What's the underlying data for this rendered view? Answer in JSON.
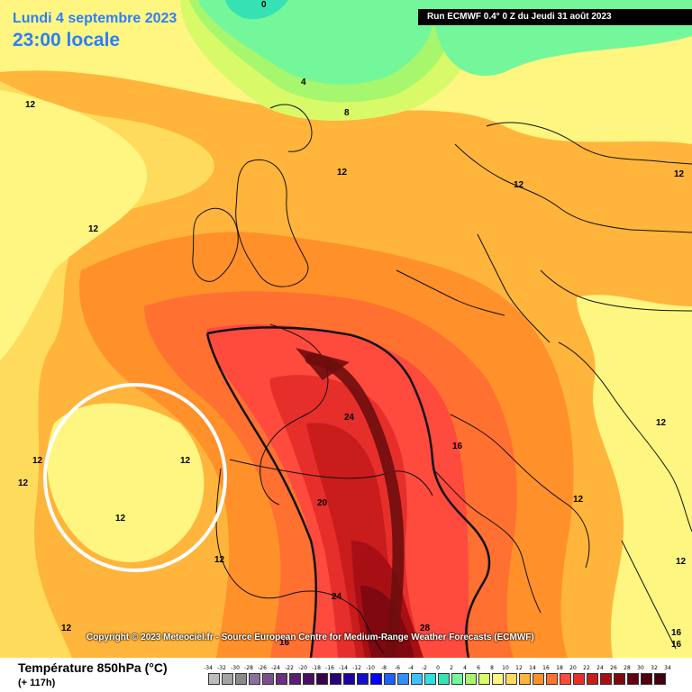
{
  "header": {
    "date": "Lundi 4 septembre 2023",
    "time": "23:00 locale",
    "run_info": "Run ECMWF 0.4° 0 Z du Jeudi 31 août 2023"
  },
  "map": {
    "copyright": "Copyright © 2023 Meteociel.fr - Source European Centre for Medium-Range Weather Forecasts (ECMWF)",
    "isotherm_labels": [
      "0",
      "4",
      "8",
      "12",
      "12",
      "12",
      "12",
      "12",
      "12",
      "12",
      "12",
      "12",
      "12",
      "12",
      "12",
      "12",
      "16",
      "16",
      "20",
      "24",
      "24",
      "28",
      "16",
      "16",
      "12"
    ],
    "colors": {
      "t4": "#36e2b4",
      "t6": "#74f79a",
      "t8": "#a6f76d",
      "t10": "#d9fa68",
      "t12": "#fff681",
      "t14": "#ffdb5d",
      "t16": "#ffb43c",
      "t18": "#ff902a",
      "t20": "#ff7031",
      "t22": "#ff4a3e",
      "t24": "#e62f2b",
      "t26": "#c91c1c",
      "t28": "#a80f14",
      "t30": "#800810",
      "arrow": "#6e0d0d",
      "circle": "#ffffff"
    }
  },
  "legend": {
    "title": "Température 850hPa (°C)",
    "subtitle": "(+ 117h)",
    "ticks": [
      "-34",
      "-32",
      "-30",
      "-28",
      "-26",
      "-24",
      "-22",
      "-20",
      "-18",
      "-16",
      "-14",
      "-12",
      "-10",
      "-8",
      "-6",
      "-4",
      "-2",
      "0",
      "2",
      "4",
      "6",
      "8",
      "10",
      "12",
      "14",
      "16",
      "18",
      "20",
      "22",
      "24",
      "26",
      "28",
      "30",
      "32",
      "34"
    ],
    "swatches": [
      "#bcbcbc",
      "#a3a3a3",
      "#8a8a8a",
      "#8a6fa0",
      "#7a4f8f",
      "#6a2f7e",
      "#5a1f6e",
      "#4a0f5e",
      "#3a0050",
      "#2a0078",
      "#2000a0",
      "#1010c8",
      "#0000ff",
      "#2060ff",
      "#3090ff",
      "#40c0ff",
      "#30e0e0",
      "#36e2b4",
      "#74f79a",
      "#a6f76d",
      "#d9fa68",
      "#fff681",
      "#ffdb5d",
      "#ffb43c",
      "#ff902a",
      "#ff7031",
      "#ff4a3e",
      "#e62f2b",
      "#c91c1c",
      "#a80f14",
      "#800810",
      "#600010",
      "#500010",
      "#400010"
    ]
  }
}
